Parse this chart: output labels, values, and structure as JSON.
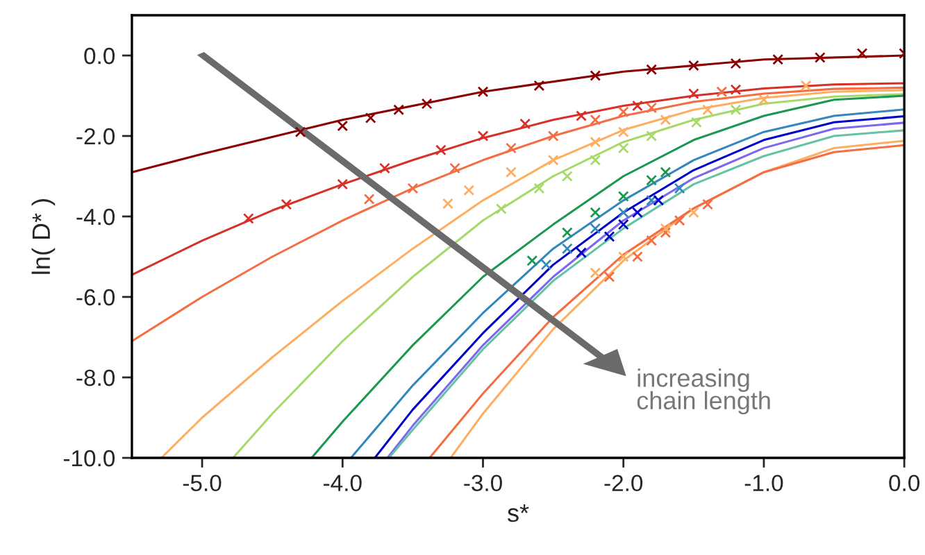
{
  "chart_data": {
    "type": "line",
    "xlabel": "s*",
    "ylabel": "ln( D* )",
    "xlim": [
      -5.5,
      0.0
    ],
    "ylim": [
      -10.0,
      1.0
    ],
    "xticks": [
      {
        "value": -5,
        "label": "-5.0"
      },
      {
        "value": -4,
        "label": "-4.0"
      },
      {
        "value": -3,
        "label": "-3.0"
      },
      {
        "value": -2,
        "label": "-2.0"
      },
      {
        "value": -1,
        "label": "-1.0"
      },
      {
        "value": 0,
        "label": "0.0"
      }
    ],
    "yticks": [
      {
        "value": 0,
        "label": "0.0"
      },
      {
        "value": -2,
        "label": "-2.0"
      },
      {
        "value": -4,
        "label": "-4.0"
      },
      {
        "value": -6,
        "label": "-6.0"
      },
      {
        "value": -8,
        "label": "-8.0"
      },
      {
        "value": -10,
        "label": "-10.0"
      }
    ],
    "grid": false,
    "legend": false,
    "line_style": "solid",
    "annotations": [
      "increasing\nchain length"
    ],
    "series": [
      {
        "type": "line",
        "marker": "none",
        "color": "#8b0000",
        "x": [
          -5.5,
          -5,
          -4,
          -3,
          -2,
          -1,
          0
        ],
        "values": [
          -2.9,
          -2.45,
          -1.6,
          -0.9,
          -0.4,
          -0.1,
          0.0
        ]
      },
      {
        "type": "line",
        "marker": "none",
        "color": "#d73027",
        "x": [
          -5.5,
          -5,
          -4.5,
          -4,
          -3.5,
          -3,
          -2.5,
          -2,
          -1.5,
          -1,
          -0.5,
          0
        ],
        "values": [
          -5.45,
          -4.6,
          -3.85,
          -3.2,
          -2.6,
          -2.05,
          -1.6,
          -1.25,
          -1.0,
          -0.82,
          -0.72,
          -0.69
        ]
      },
      {
        "type": "line",
        "marker": "none",
        "color": "#f46d43",
        "x": [
          -5.5,
          -5,
          -4.5,
          -4,
          -3.5,
          -3,
          -2.5,
          -2,
          -1.5,
          -1,
          -0.5,
          0
        ],
        "values": [
          -7.1,
          -6.0,
          -5.0,
          -4.1,
          -3.3,
          -2.6,
          -2.0,
          -1.5,
          -1.15,
          -0.95,
          -0.83,
          -0.8
        ]
      },
      {
        "type": "line",
        "marker": "none",
        "color": "#fdae61",
        "x": [
          -5.29,
          -5,
          -4.5,
          -4,
          -3.5,
          -3,
          -2.5,
          -2,
          -1.5,
          -1,
          -0.5,
          0
        ],
        "values": [
          -10,
          -9.0,
          -7.5,
          -6.1,
          -4.8,
          -3.6,
          -2.6,
          -1.85,
          -1.35,
          -1.05,
          -0.9,
          -0.86
        ]
      },
      {
        "type": "line",
        "marker": "none",
        "color": "#a6d96a",
        "x": [
          -4.78,
          -4.5,
          -4,
          -3.5,
          -3,
          -2.5,
          -2,
          -1.5,
          -1,
          -0.5,
          0
        ],
        "values": [
          -10,
          -8.9,
          -7.1,
          -5.5,
          -4.1,
          -3.0,
          -2.15,
          -1.6,
          -1.2,
          -1.02,
          -0.96
        ]
      },
      {
        "type": "line",
        "marker": "none",
        "color": "#1a9850",
        "x": [
          -4.22,
          -4,
          -3.5,
          -3,
          -2.5,
          -2,
          -1.5,
          -1,
          -0.5,
          0
        ],
        "values": [
          -10,
          -9.1,
          -7.2,
          -5.5,
          -4.2,
          -3.0,
          -2.1,
          -1.5,
          -1.1,
          -1.0
        ]
      },
      {
        "type": "line",
        "marker": "none",
        "color": "#3288bd",
        "x": [
          -3.94,
          -3.5,
          -3,
          -2.5,
          -2,
          -1.5,
          -1,
          -0.5,
          0
        ],
        "values": [
          -10,
          -8.2,
          -6.4,
          -4.8,
          -3.6,
          -2.6,
          -1.9,
          -1.5,
          -1.34
        ]
      },
      {
        "type": "line",
        "marker": "none",
        "color": "#0000cd",
        "x": [
          -3.77,
          -3.5,
          -3,
          -2.5,
          -2,
          -1.5,
          -1,
          -0.5,
          0
        ],
        "values": [
          -10,
          -8.8,
          -6.9,
          -5.2,
          -3.9,
          -2.85,
          -2.1,
          -1.66,
          -1.51
        ]
      },
      {
        "type": "line",
        "marker": "none",
        "color": "#7b68ee",
        "x": [
          -3.68,
          -3.5,
          -3,
          -2.5,
          -2,
          -1.5,
          -1,
          -0.5,
          0
        ],
        "values": [
          -10,
          -9.2,
          -7.2,
          -5.5,
          -4.1,
          -3.05,
          -2.3,
          -1.82,
          -1.67
        ]
      },
      {
        "type": "line",
        "marker": "none",
        "color": "#66c2a5",
        "x": [
          -3.67,
          -3.5,
          -3,
          -2.5,
          -2,
          -1.5,
          -1,
          -0.5,
          0
        ],
        "values": [
          -10,
          -9.3,
          -7.3,
          -5.6,
          -4.3,
          -3.2,
          -2.5,
          -2.0,
          -1.86
        ]
      },
      {
        "type": "line",
        "marker": "none",
        "color": "#fdae61",
        "x": [
          -3.23,
          -3,
          -2.5,
          -2,
          -1.5,
          -1,
          -0.5,
          0
        ],
        "values": [
          -10,
          -8.9,
          -6.8,
          -5.1,
          -3.8,
          -2.9,
          -2.3,
          -2.12
        ]
      },
      {
        "type": "line",
        "marker": "none",
        "color": "#f46d43",
        "x": [
          -3.38,
          -3,
          -2.5,
          -2,
          -1.5,
          -1,
          -0.5,
          0
        ],
        "values": [
          -10,
          -8.4,
          -6.5,
          -4.95,
          -3.8,
          -2.9,
          -2.4,
          -2.23
        ]
      },
      {
        "type": "scatter",
        "marker": "cross",
        "color": "#8b0000",
        "x": [
          -4.3,
          -4.0,
          -3.8,
          -3.6,
          -3.4,
          -3.0,
          -2.6,
          -2.2,
          -1.8,
          -1.5,
          -1.2,
          -0.9,
          -0.6,
          -0.3,
          0.0
        ],
        "values": [
          -1.9,
          -1.75,
          -1.55,
          -1.35,
          -1.2,
          -0.9,
          -0.75,
          -0.5,
          -0.35,
          -0.25,
          -0.2,
          -0.1,
          -0.05,
          0.05,
          0.05
        ]
      },
      {
        "type": "scatter",
        "marker": "cross",
        "color": "#d73027",
        "x": [
          -4.67,
          -4.4,
          -4.0,
          -3.7,
          -3.3,
          -3.0,
          -2.7,
          -2.3,
          -1.9,
          -1.5,
          -1.2
        ],
        "values": [
          -4.05,
          -3.7,
          -3.2,
          -2.8,
          -2.35,
          -2.0,
          -1.7,
          -1.5,
          -1.25,
          -0.95,
          -0.85
        ]
      },
      {
        "type": "scatter",
        "marker": "cross",
        "color": "#f46d43",
        "x": [
          -3.81,
          -3.5,
          -3.2,
          -2.8,
          -2.5,
          -2.2,
          -2.0,
          -1.8,
          -1.3
        ],
        "values": [
          -3.57,
          -3.3,
          -2.8,
          -2.3,
          -2.0,
          -1.6,
          -1.4,
          -1.3,
          -0.9
        ]
      },
      {
        "type": "scatter",
        "marker": "cross",
        "color": "#fdae61",
        "x": [
          -3.25,
          -3.1,
          -2.8,
          -2.5,
          -2.2,
          -2.0,
          -1.7,
          -1.4,
          -1.0,
          -0.7
        ],
        "values": [
          -3.68,
          -3.35,
          -2.9,
          -2.6,
          -2.15,
          -1.9,
          -1.6,
          -1.35,
          -1.1,
          -0.75
        ]
      },
      {
        "type": "scatter",
        "marker": "cross",
        "color": "#a6d96a",
        "x": [
          -2.87,
          -2.6,
          -2.4,
          -2.2,
          -2.0,
          -1.8,
          -1.48,
          -1.2
        ],
        "values": [
          -3.81,
          -3.3,
          -3.0,
          -2.6,
          -2.3,
          -2.0,
          -1.66,
          -1.35
        ]
      },
      {
        "type": "scatter",
        "marker": "cross",
        "color": "#1a9850",
        "x": [
          -2.65,
          -2.4,
          -2.2,
          -2.0,
          -1.8,
          -1.7
        ],
        "values": [
          -5.1,
          -4.4,
          -3.9,
          -3.5,
          -3.1,
          -2.9
        ]
      },
      {
        "type": "scatter",
        "marker": "cross",
        "color": "#3288bd",
        "x": [
          -2.55,
          -2.4,
          -2.2,
          -2.0,
          -1.8,
          -1.6
        ],
        "values": [
          -5.2,
          -4.8,
          -4.3,
          -3.9,
          -3.6,
          -3.3
        ]
      },
      {
        "type": "scatter",
        "marker": "cross",
        "color": "#0000cd",
        "x": [
          -2.3,
          -2.1,
          -2.0,
          -1.9,
          -1.75
        ],
        "values": [
          -4.9,
          -4.5,
          -4.2,
          -3.9,
          -3.6
        ]
      },
      {
        "type": "scatter",
        "marker": "cross",
        "color": "#f46d43",
        "x": [
          -2.1,
          -1.9,
          -1.8,
          -1.7,
          -1.6,
          -1.4
        ],
        "values": [
          -5.5,
          -5.0,
          -4.6,
          -4.4,
          -4.1,
          -3.7
        ]
      },
      {
        "type": "scatter",
        "marker": "cross",
        "color": "#fdae61",
        "x": [
          -2.2,
          -2.0,
          -1.7,
          -1.5
        ],
        "values": [
          -5.4,
          -5.0,
          -4.3,
          -3.9
        ]
      }
    ]
  }
}
